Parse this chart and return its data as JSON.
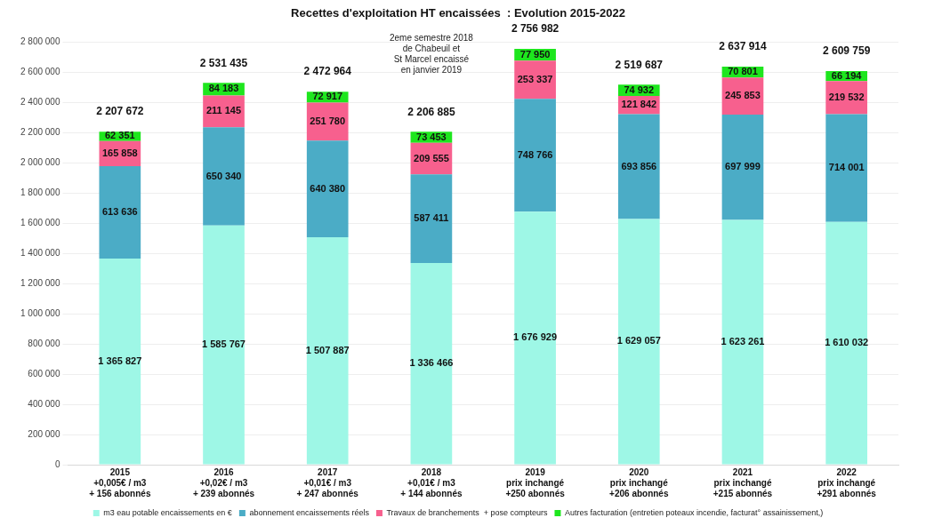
{
  "chart_data": {
    "type": "bar",
    "title": "Recettes d'exploitation HT encaissées  : Evolution 2015-2022",
    "stacked": true,
    "grid": "y",
    "legend": "bottom",
    "categories": [
      "2015\n+0,005€ / m3\n+ 156 abonnés",
      "2016\n+0,02€ / m3\n+ 239 abonnés",
      "2017\n+0,01€ / m3\n+ 247 abonnés",
      "2018\n+0,01€ / m3\n+ 144 abonnés",
      "2019\nprix inchangé\n+250 abonnés",
      "2020\nprix inchangé\n+206 abonnés",
      "2021\nprix inchangé\n+215 abonnés",
      "2022\nprix inchangé\n+291 abonnés"
    ],
    "ylim": [
      0,
      2800000
    ],
    "yticks": [
      {
        "value": 0,
        "label": "0"
      },
      {
        "value": 200000,
        "label": "200 000"
      },
      {
        "value": 400000,
        "label": "400 000"
      },
      {
        "value": 600000,
        "label": "600 000"
      },
      {
        "value": 800000,
        "label": "800 000"
      },
      {
        "value": 1000000,
        "label": "1 000 000"
      },
      {
        "value": 1200000,
        "label": "1 200 000"
      },
      {
        "value": 1400000,
        "label": "1 400 000"
      },
      {
        "value": 1600000,
        "label": "1 600 000"
      },
      {
        "value": 1800000,
        "label": "1 800 000"
      },
      {
        "value": 2000000,
        "label": "2 000 000"
      },
      {
        "value": 2200000,
        "label": "2 200 000"
      },
      {
        "value": 2400000,
        "label": "2 400 000"
      },
      {
        "value": 2600000,
        "label": "2 600 000"
      },
      {
        "value": 2800000,
        "label": "2 800 000"
      }
    ],
    "series": [
      {
        "name": "m3 eau potable encaissements en €",
        "color": "#9ef7e6",
        "values": [
          1365827,
          1585767,
          1507887,
          1336466,
          1676929,
          1629057,
          1623261,
          1610032
        ],
        "value_labels": [
          "1 365 827",
          "1 585 767",
          "1 507 887",
          "1 336 466",
          "1 676 929",
          "1 629 057",
          "1 623 261",
          "1 610 032"
        ]
      },
      {
        "name": "abonnement encaissements réels",
        "color": "#4bacc6",
        "values": [
          613636,
          650340,
          640380,
          587411,
          748766,
          693856,
          697999,
          714001
        ],
        "value_labels": [
          "613 636",
          "650 340",
          "640 380",
          "587 411",
          "748 766",
          "693 856",
          "697 999",
          "714 001"
        ]
      },
      {
        "name": "Travaux de branchements  + pose compteurs",
        "color": "#f7608e",
        "values": [
          165858,
          211145,
          251780,
          209555,
          253337,
          121842,
          245853,
          219532
        ],
        "value_labels": [
          "165 858",
          "211 145",
          "251 780",
          "209 555",
          "253 337",
          "121 842",
          "245 853",
          "219 532"
        ]
      },
      {
        "name": "Autres facturation (entretien poteaux incendie, facturat° assainissement,)",
        "color": "#1ee61e",
        "values": [
          62351,
          84183,
          72917,
          73453,
          77950,
          74932,
          70801,
          66194
        ],
        "value_labels": [
          "62 351",
          "84 183",
          "72 917",
          "73 453",
          "77 950",
          "74 932",
          "70 801",
          "66 194"
        ]
      }
    ],
    "totals": [
      "2 207 672",
      "2 531 435",
      "2 472 964",
      "2 206 885",
      "2 756 982",
      "2 519 687",
      "2 637 914",
      "2 609 759"
    ],
    "annotations": [
      "2eme semestre 2018\nde Chabeuil et\nSt Marcel encaissé\nen janvier 2019"
    ]
  }
}
